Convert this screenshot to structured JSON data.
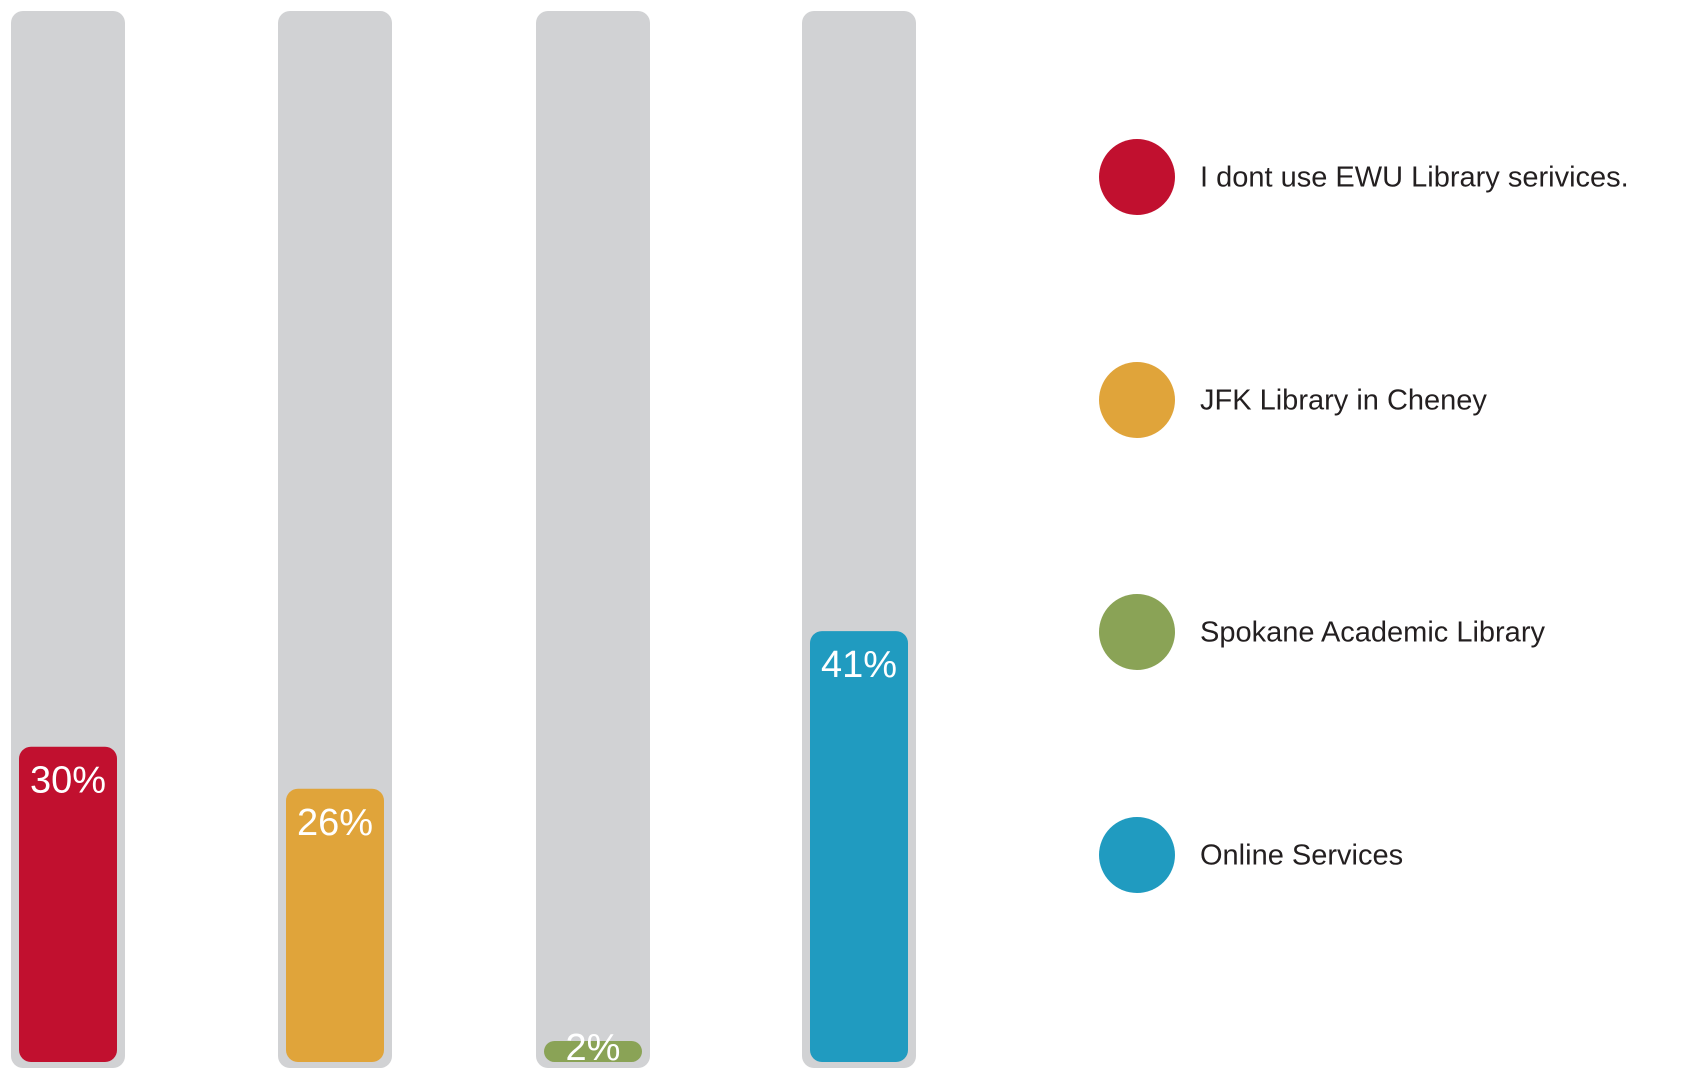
{
  "chart_data": {
    "type": "bar",
    "categories": [
      "I dont use EWU Library serivices.",
      "JFK Library in Cheney",
      "Spokane Academic Library",
      "Online Services"
    ],
    "values": [
      30,
      26,
      2,
      41
    ],
    "value_labels": [
      "30%",
      "26%",
      "2%",
      "41%"
    ],
    "colors": [
      "#c1102f",
      "#e0a43a",
      "#8aa356",
      "#209bc0"
    ],
    "track_color": "#d1d2d4",
    "ylim": [
      0,
      100
    ],
    "legend": "right"
  }
}
